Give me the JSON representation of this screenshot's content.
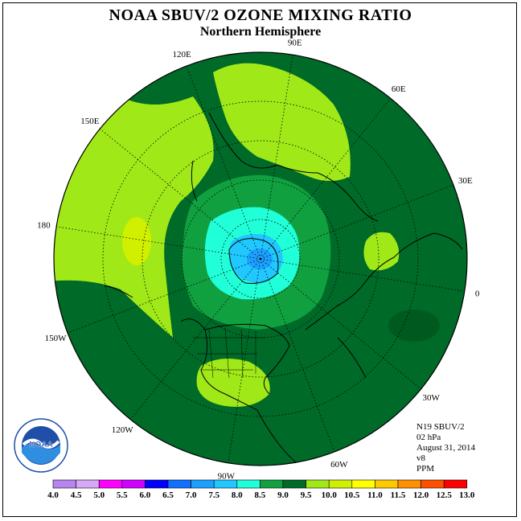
{
  "title": "NOAA SBUV/2 OZONE MIXING RATIO",
  "subtitle": "Northern Hemisphere",
  "longitude_labels": [
    "90E",
    "60E",
    "30E",
    "0",
    "30W",
    "60W",
    "90W",
    "120W",
    "150W",
    "180",
    "150E",
    "120E"
  ],
  "info": {
    "satellite": "N19 SBUV/2",
    "level": "02 hPa",
    "date": "August 31, 2014",
    "version": "v8",
    "units": "PPM"
  },
  "logo_text": "NOAA",
  "colorbar": {
    "labels": [
      "4.0",
      "4.5",
      "5.0",
      "5.5",
      "6.0",
      "6.5",
      "7.0",
      "7.5",
      "8.0",
      "8.5",
      "9.0",
      "9.5",
      "10.0",
      "10.5",
      "11.0",
      "11.5",
      "12.0",
      "12.5",
      "13.0"
    ],
    "colors": [
      "#b884f0",
      "#d8a8f8",
      "#ff00ff",
      "#d000ff",
      "#0000ff",
      "#1070ff",
      "#1ca0ff",
      "#20c8ff",
      "#20ffd8",
      "#10a040",
      "#006a28",
      "#a0e818",
      "#d0f000",
      "#ffff00",
      "#ffc800",
      "#ff9000",
      "#ff5000",
      "#ff0000",
      "#8c5030"
    ]
  },
  "map_colors": {
    "ocean_background": "#006a28",
    "band_8_5": "#10a040",
    "band_9_5": "#a0e818",
    "band_8_0": "#20ffd8",
    "band_7_5": "#20c8ff",
    "band_7_0": "#1ca0ff"
  }
}
